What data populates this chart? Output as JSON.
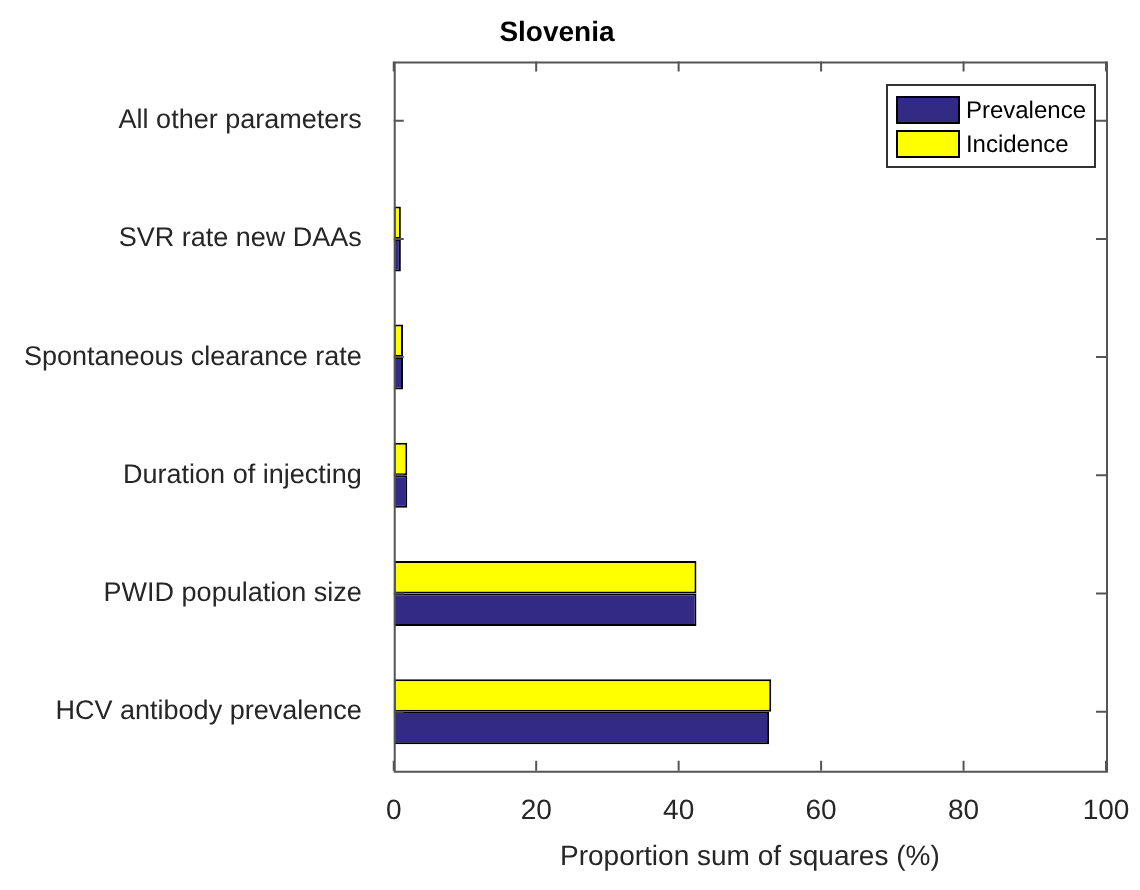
{
  "chart_data": {
    "type": "bar",
    "orientation": "horizontal",
    "title": "Slovenia",
    "xlabel": "Proportion sum of squares (%)",
    "categories": [
      "All other parameters",
      "SVR rate new DAAs",
      "Spontaneous clearance rate",
      "Duration of injecting",
      "PWID population size",
      "HCV antibody prevalence"
    ],
    "series": [
      {
        "name": "Incidence",
        "color": "#ffff00",
        "values": [
          0,
          1.0,
          1.3,
          1.9,
          42.5,
          53.0
        ]
      },
      {
        "name": "Prevalence",
        "color": "#332a86",
        "values": [
          0,
          1.0,
          1.3,
          1.9,
          42.5,
          52.7
        ]
      }
    ],
    "xlim": [
      0,
      100
    ],
    "xticks": [
      0,
      20,
      40,
      60,
      80,
      100
    ],
    "legend": "top right"
  }
}
